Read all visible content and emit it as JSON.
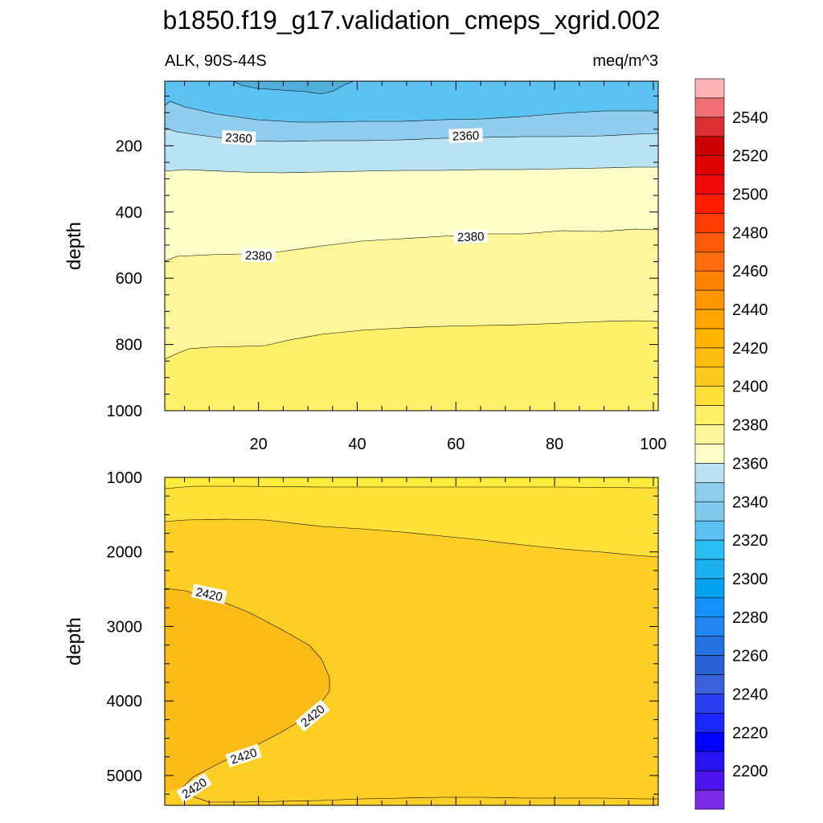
{
  "title": "b1850.f19_g17.validation_cmeps_xgrid.002",
  "chart_data": [
    {
      "type": "heatmap",
      "panel": "upper",
      "subtitle_left": "ALK, 90S-44S",
      "subtitle_right": "meq/m^3",
      "xlabel": "",
      "ylabel": "depth",
      "xlim": [
        1,
        101
      ],
      "ylim": [
        1000,
        5
      ],
      "x_ticks": [
        "20",
        "40",
        "60",
        "80",
        "100"
      ],
      "y_ticks": [
        "200",
        "400",
        "600",
        "800",
        "1000"
      ],
      "fills": [
        {
          "range": [
            2340,
            2350
          ],
          "color": "#5bc2f2"
        },
        {
          "range": [
            2350,
            2360
          ],
          "color": "#8ecdee"
        },
        {
          "range": [
            2360,
            2370
          ],
          "color": "#b9e2f3"
        },
        {
          "range": [
            2370,
            2380
          ],
          "color": "#ffffc8"
        },
        {
          "range": [
            2380,
            2390
          ],
          "color": "#fff69a"
        },
        {
          "range": [
            2390,
            2400
          ],
          "color": "#fff06a"
        }
      ],
      "contour_labels": [
        {
          "text": "2360",
          "x": 16,
          "depth": 177
        },
        {
          "text": "2360",
          "x": 62,
          "depth": 170
        },
        {
          "text": "2380",
          "x": 20,
          "depth": 532
        },
        {
          "text": "2380",
          "x": 63,
          "depth": 475
        }
      ]
    },
    {
      "type": "heatmap",
      "panel": "lower",
      "xlabel": "",
      "ylabel": "depth",
      "xlim": [
        1,
        101
      ],
      "ylim": [
        5400,
        1000
      ],
      "y_ticks": [
        "1000",
        "2000",
        "3000",
        "4000",
        "5000"
      ],
      "fills": [
        {
          "range": [
            2400,
            2410
          ],
          "color": "#ffe13a"
        },
        {
          "range": [
            2410,
            2420
          ],
          "color": "#fcce26"
        },
        {
          "range": [
            2420,
            2430
          ],
          "color": "#fcbc18"
        }
      ],
      "contour_labels": [
        {
          "text": "2420",
          "x": 10,
          "depth": 2570
        },
        {
          "text": "2420",
          "x": 31,
          "depth": 4200
        },
        {
          "text": "2420",
          "x": 17,
          "depth": 4740
        },
        {
          "text": "2420",
          "x": 7,
          "depth": 5170
        }
      ]
    }
  ],
  "colorbar": {
    "labels": [
      "2540",
      "2520",
      "2500",
      "2480",
      "2460",
      "2440",
      "2420",
      "2400",
      "2380",
      "2360",
      "2340",
      "2320",
      "2300",
      "2280",
      "2260",
      "2240",
      "2220",
      "2200"
    ],
    "colors": [
      "#fbb3b5",
      "#ee7074",
      "#dc2f32",
      "#cc0000",
      "#e00000",
      "#f00a0a",
      "#ff1e00",
      "#ff3c00",
      "#ff5a0a",
      "#ff6e0e",
      "#ff8200",
      "#ff9600",
      "#ffa500",
      "#ffb400",
      "#fdbc10",
      "#fdca20",
      "#ffe13a",
      "#fff06a",
      "#fff69a",
      "#ffffc8",
      "#b9e2f3",
      "#8ecdee",
      "#82c9ee",
      "#5bc2f2",
      "#2abff2",
      "#1cb2f2",
      "#00a2f0",
      "#1490ff",
      "#2285f0",
      "#2472e2",
      "#2a62d6",
      "#3a62dc",
      "#2a3ef0",
      "#1a28ff",
      "#0000ff",
      "#2814f0",
      "#4c14ee",
      "#7a2ce8"
    ]
  }
}
